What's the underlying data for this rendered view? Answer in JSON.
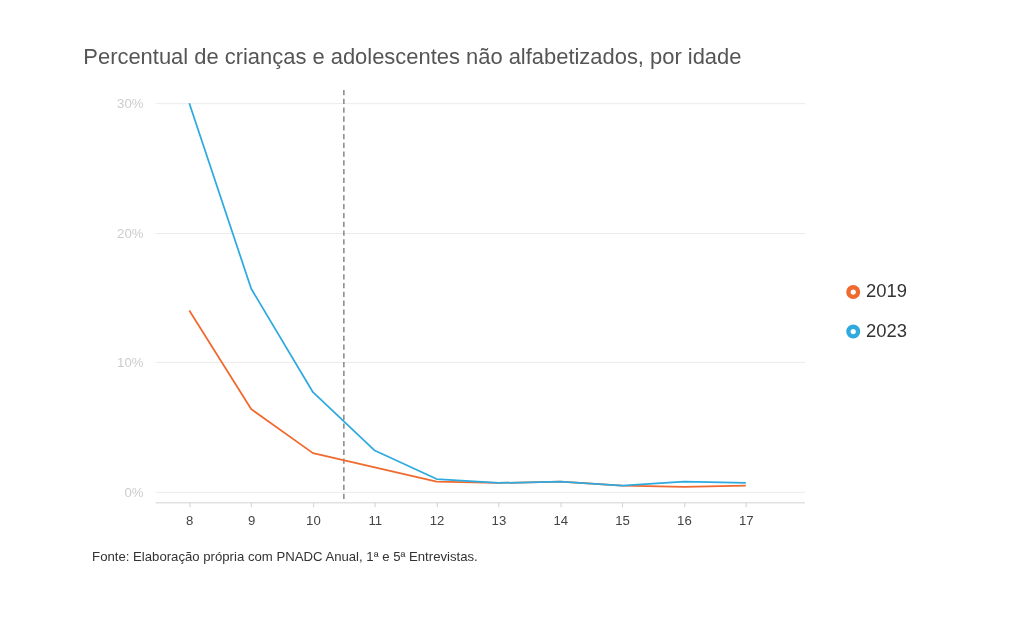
{
  "chart_data": {
    "type": "line",
    "title": "Percentual de crianças e adolescentes não alfabetizados, por idade",
    "x": [
      8,
      9,
      10,
      11,
      12,
      13,
      14,
      15,
      16,
      17
    ],
    "series": [
      {
        "name": "2019",
        "color": "#f0692e",
        "values": [
          14.0,
          6.4,
          3.0,
          1.9,
          0.8,
          0.7,
          0.8,
          0.5,
          0.4,
          0.5
        ]
      },
      {
        "name": "2023",
        "color": "#2eaadf",
        "values": [
          30.0,
          15.7,
          7.7,
          3.2,
          1.0,
          0.7,
          0.8,
          0.5,
          0.8,
          0.7
        ]
      }
    ],
    "xlim": [
      7.45,
      17.95
    ],
    "xticks": [
      8,
      9,
      10,
      11,
      12,
      13,
      14,
      15,
      16,
      17
    ],
    "ylim": [
      -0.8,
      30
    ],
    "yticks": [
      {
        "value": 0,
        "label": "0%"
      },
      {
        "value": 10,
        "label": "10%"
      },
      {
        "value": 20,
        "label": "20%"
      },
      {
        "value": 30,
        "label": "30%"
      }
    ],
    "ref_lines": [
      {
        "axis": "x",
        "value": 10.5,
        "label": null,
        "color": "#777777",
        "line_style": "dashed"
      }
    ],
    "grid": "y",
    "legend": "right",
    "annotations": [
      "Fonte: Elaboração própria com PNADC Anual, 1ª e 5ª Entrevistas."
    ]
  }
}
